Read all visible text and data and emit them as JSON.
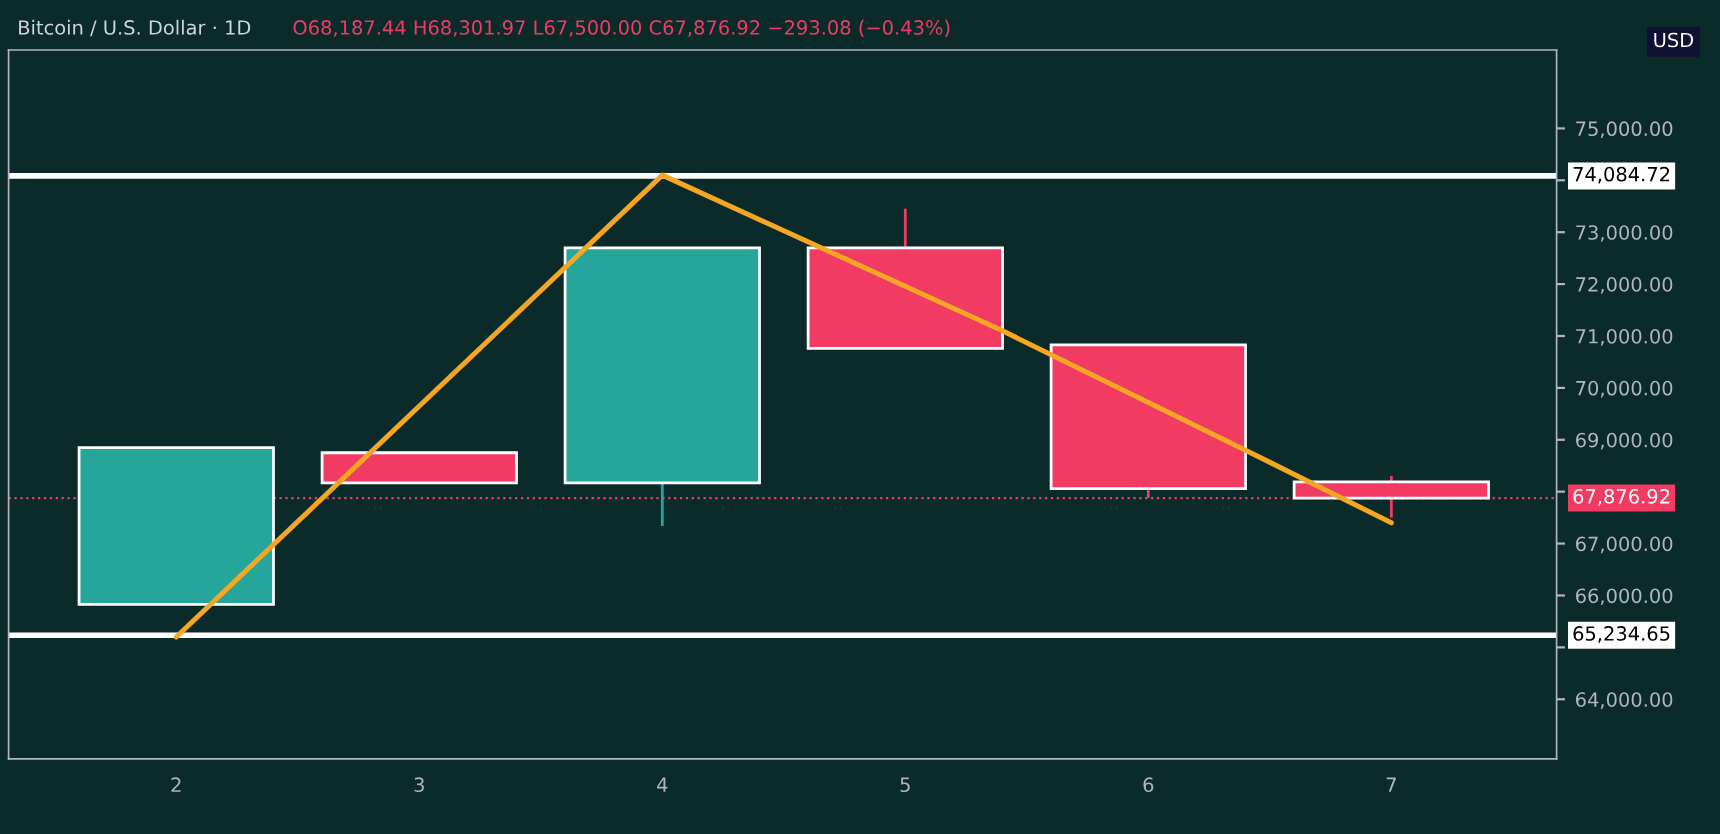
{
  "chart_data": {
    "type": "candlestick",
    "title": "Bitcoin / U.S. Dollar · 1D",
    "subtitle": "O68,187.44 H68,301.97 L67,500.00 C67,876.92 −293.08 (−0.43%)",
    "x": [
      2,
      3,
      4,
      5,
      6,
      7
    ],
    "ohlc": [
      [
        65830,
        68850,
        65830,
        68850
      ],
      [
        68750,
        68750,
        68170,
        68170
      ],
      [
        68170,
        72700,
        67340,
        72700
      ],
      [
        72700,
        73450,
        70760,
        70760
      ],
      [
        70830,
        70830,
        67880,
        68060
      ],
      [
        68187.44,
        68301.97,
        67500,
        67876.92
      ]
    ],
    "colors": [
      "#26a69a",
      "#f23b63",
      "#26a69a",
      "#f23b63",
      "#f23b63",
      "#f23b63"
    ],
    "series": [
      {
        "type": "line",
        "color": "#f5a623",
        "x": [
          2,
          4,
          5.4,
          6.4,
          7
        ],
        "values": [
          65200,
          74100,
          71100,
          68800,
          67400
        ]
      }
    ],
    "xlim": [
      1.31,
      7.68
    ],
    "ylim": [
      62850,
      76510
    ],
    "xticks": [
      2,
      3,
      4,
      5,
      6,
      7
    ],
    "yticks": [
      {
        "value": 64000,
        "label": "64,000.00"
      },
      {
        "value": 65000,
        "label": null
      },
      {
        "value": 66000,
        "label": "66,000.00"
      },
      {
        "value": 67000,
        "label": "67,000.00"
      },
      {
        "value": 68000,
        "label": null
      },
      {
        "value": 69000,
        "label": "69,000.00"
      },
      {
        "value": 70000,
        "label": "70,000.00"
      },
      {
        "value": 71000,
        "label": "71,000.00"
      },
      {
        "value": 72000,
        "label": "72,000.00"
      },
      {
        "value": 73000,
        "label": "73,000.00"
      },
      {
        "value": 74000,
        "label": null
      },
      {
        "value": 75000,
        "label": "75,000.00"
      }
    ],
    "ref_lines": [
      {
        "axis": "y",
        "value": 74084.72,
        "label": "74,084.72",
        "color": "#ffffff"
      },
      {
        "axis": "y",
        "value": 65234.65,
        "label": "65,234.65",
        "color": "#ffffff"
      },
      {
        "axis": "y",
        "value": 67876.92,
        "label": "67,876.92",
        "color": "#f23b63",
        "line_style": "dotted"
      }
    ],
    "annotations": [
      "USD"
    ],
    "grid": false,
    "legend": false
  }
}
